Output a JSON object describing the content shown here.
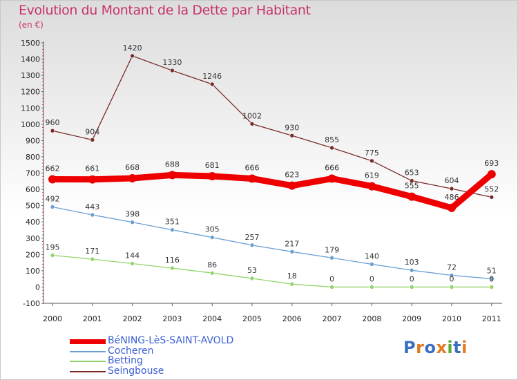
{
  "title": "Evolution du Montant de la Dette par Habitant",
  "unit": "(en €)",
  "logo": {
    "text": "Proxiti",
    "colors": [
      "#3b6fc7",
      "#e07b1f",
      "#3b6fc7",
      "#e07b1f",
      "#5aa63a",
      "#3b6fc7",
      "#e07b1f"
    ]
  },
  "chart_data": {
    "type": "line",
    "x": [
      "2000",
      "2001",
      "2002",
      "2003",
      "2004",
      "2005",
      "2006",
      "2007",
      "2008",
      "2009",
      "2010",
      "2011"
    ],
    "ylim": [
      -100,
      1500
    ],
    "yticks": [
      -100,
      0,
      100,
      200,
      300,
      400,
      500,
      600,
      700,
      800,
      900,
      1000,
      1100,
      1200,
      1300,
      1400,
      1500
    ],
    "grid": false,
    "legend_position": "bottom-left",
    "series": [
      {
        "name": "BéNING-LèS-SAINT-AVOLD",
        "color": "#ee0000",
        "width": 9,
        "marker": 6,
        "values": [
          662,
          661,
          668,
          688,
          681,
          666,
          623,
          666,
          619,
          555,
          486,
          693
        ],
        "labels": [
          "662",
          "661",
          "668",
          "688",
          "681",
          "666",
          "623",
          "666",
          "619",
          "555",
          "486",
          "693"
        ]
      },
      {
        "name": "Cocheren",
        "color": "#6a9fd4",
        "width": 1.3,
        "marker": 3,
        "values": [
          492,
          443,
          398,
          351,
          305,
          257,
          217,
          179,
          140,
          103,
          72,
          51
        ],
        "labels": [
          "492",
          "443",
          "398",
          "351",
          "305",
          "257",
          "217",
          "179",
          "140",
          "103",
          "72",
          "51"
        ]
      },
      {
        "name": "Betting",
        "color": "#92d46a",
        "width": 1.3,
        "marker": 3,
        "values": [
          195,
          171,
          144,
          116,
          86,
          53,
          18,
          0,
          0,
          0,
          0,
          0
        ],
        "labels": [
          "195",
          "171",
          "144",
          "116",
          "86",
          "53",
          "18",
          "0",
          "0",
          "0",
          "0",
          "0"
        ]
      },
      {
        "name": "Seingbouse",
        "color": "#7a2a2a",
        "width": 1.3,
        "marker": 3,
        "values": [
          960,
          904,
          1420,
          1330,
          1246,
          1002,
          930,
          855,
          775,
          653,
          604,
          552
        ],
        "labels": [
          "960",
          "904",
          "1420",
          "1330",
          "1246",
          "1002",
          "930",
          "855",
          "775",
          "653",
          "604",
          "552"
        ]
      }
    ]
  }
}
